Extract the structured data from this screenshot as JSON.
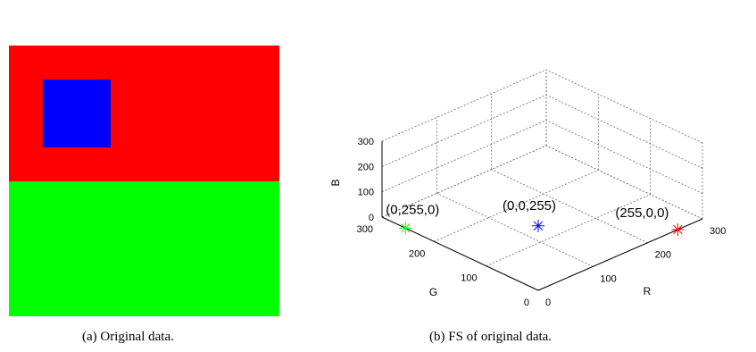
{
  "subfigure_a": {
    "caption": "(a)  Original data.",
    "blocks": [
      {
        "name": "red-region",
        "color": "#ff0000"
      },
      {
        "name": "green-region",
        "color": "#00ff00"
      },
      {
        "name": "blue-square",
        "color": "#0000ff"
      }
    ]
  },
  "subfigure_b": {
    "caption": "(b)  FS of original data."
  },
  "chart_data": {
    "type": "scatter",
    "title": "",
    "axes": {
      "R": {
        "label": "R",
        "range": [
          0,
          300
        ],
        "ticks": [
          "0",
          "100",
          "200",
          "300"
        ]
      },
      "G": {
        "label": "G",
        "range": [
          0,
          300
        ],
        "ticks": [
          "0",
          "100",
          "200",
          "300"
        ]
      },
      "B": {
        "label": "B",
        "range": [
          0,
          300
        ],
        "ticks": [
          "0",
          "100",
          "200",
          "300"
        ]
      }
    },
    "grid": true,
    "points": [
      {
        "r": 0,
        "g": 0,
        "b": 255,
        "label": "(0,0,255)",
        "color": "#0000ff",
        "marker": "*"
      },
      {
        "r": 0,
        "g": 255,
        "b": 0,
        "label": "(0,255,0)",
        "color": "#00ff00",
        "marker": "*"
      },
      {
        "r": 255,
        "g": 0,
        "b": 0,
        "label": "(255,0,0)",
        "color": "#ff0000",
        "marker": "*"
      }
    ]
  }
}
